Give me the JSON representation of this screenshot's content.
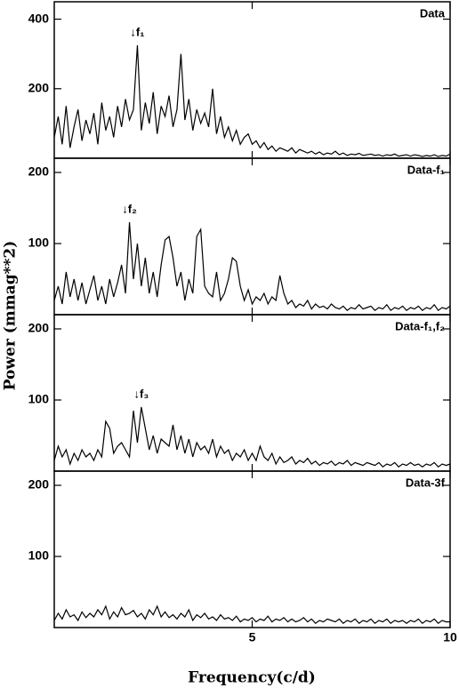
{
  "xlabel": "Frequency(c/d)",
  "ylabel": "Power (mmag**2)",
  "chart_data": [
    {
      "type": "line",
      "label": "Data",
      "xlim": [
        0,
        10
      ],
      "xticks": [
        5,
        10
      ],
      "ylim": [
        0,
        450
      ],
      "yticks": [
        200,
        400
      ],
      "annotation": {
        "text": "↓f₁",
        "x": 2.1,
        "y": 325
      },
      "x": [
        0,
        0.1,
        0.2,
        0.3,
        0.4,
        0.5,
        0.6,
        0.7,
        0.8,
        0.9,
        1,
        1.1,
        1.2,
        1.3,
        1.4,
        1.5,
        1.6,
        1.7,
        1.8,
        1.9,
        2,
        2.1,
        2.2,
        2.3,
        2.4,
        2.5,
        2.6,
        2.7,
        2.8,
        2.9,
        3,
        3.1,
        3.2,
        3.3,
        3.4,
        3.5,
        3.6,
        3.7,
        3.8,
        3.9,
        4,
        4.1,
        4.2,
        4.3,
        4.4,
        4.5,
        4.6,
        4.7,
        4.8,
        4.9,
        5,
        5.1,
        5.2,
        5.3,
        5.4,
        5.5,
        5.6,
        5.7,
        5.8,
        5.9,
        6,
        6.1,
        6.2,
        6.3,
        6.4,
        6.5,
        6.6,
        6.7,
        6.8,
        6.9,
        7,
        7.1,
        7.2,
        7.3,
        7.4,
        7.5,
        7.6,
        7.7,
        7.8,
        7.9,
        8,
        8.1,
        8.2,
        8.3,
        8.4,
        8.5,
        8.6,
        8.7,
        8.8,
        8.9,
        9,
        9.1,
        9.2,
        9.3,
        9.4,
        9.5,
        9.6,
        9.7,
        9.8,
        9.9,
        10
      ],
      "values": [
        60,
        120,
        40,
        150,
        30,
        90,
        140,
        50,
        110,
        70,
        130,
        40,
        160,
        80,
        120,
        60,
        150,
        90,
        170,
        110,
        140,
        325,
        80,
        160,
        100,
        190,
        70,
        150,
        120,
        180,
        90,
        140,
        300,
        110,
        170,
        80,
        140,
        100,
        130,
        90,
        200,
        70,
        120,
        60,
        90,
        50,
        80,
        40,
        60,
        70,
        40,
        50,
        30,
        45,
        25,
        35,
        20,
        30,
        25,
        20,
        30,
        15,
        25,
        20,
        15,
        20,
        12,
        18,
        10,
        15,
        12,
        20,
        10,
        15,
        8,
        12,
        10,
        14,
        8,
        10,
        12,
        8,
        10,
        6,
        10,
        8,
        12,
        6,
        8,
        10,
        6,
        10,
        8,
        5,
        8,
        6,
        10,
        5,
        8,
        6,
        12
      ]
    },
    {
      "type": "line",
      "label": "Data-f₁",
      "xlim": [
        0,
        10
      ],
      "xticks": [
        5,
        10
      ],
      "ylim": [
        0,
        220
      ],
      "yticks": [
        100,
        200
      ],
      "annotation": {
        "text": "↓f₂",
        "x": 1.9,
        "y": 130
      },
      "x": [
        0,
        0.1,
        0.2,
        0.3,
        0.4,
        0.5,
        0.6,
        0.7,
        0.8,
        0.9,
        1,
        1.1,
        1.2,
        1.3,
        1.4,
        1.5,
        1.6,
        1.7,
        1.8,
        1.9,
        2,
        2.1,
        2.2,
        2.3,
        2.4,
        2.5,
        2.6,
        2.7,
        2.8,
        2.9,
        3,
        3.1,
        3.2,
        3.3,
        3.4,
        3.5,
        3.6,
        3.7,
        3.8,
        3.9,
        4,
        4.1,
        4.2,
        4.3,
        4.4,
        4.5,
        4.6,
        4.7,
        4.8,
        4.9,
        5,
        5.1,
        5.2,
        5.3,
        5.4,
        5.5,
        5.6,
        5.7,
        5.8,
        5.9,
        6,
        6.1,
        6.2,
        6.3,
        6.4,
        6.5,
        6.6,
        6.7,
        6.8,
        6.9,
        7,
        7.1,
        7.2,
        7.3,
        7.4,
        7.5,
        7.6,
        7.7,
        7.8,
        7.9,
        8,
        8.1,
        8.2,
        8.3,
        8.4,
        8.5,
        8.6,
        8.7,
        8.8,
        8.9,
        9,
        9.1,
        9.2,
        9.3,
        9.4,
        9.5,
        9.6,
        9.7,
        9.8,
        9.9,
        10
      ],
      "values": [
        20,
        40,
        15,
        60,
        25,
        50,
        20,
        45,
        15,
        35,
        55,
        20,
        40,
        15,
        50,
        25,
        45,
        70,
        30,
        130,
        50,
        100,
        40,
        80,
        30,
        60,
        25,
        70,
        105,
        110,
        80,
        40,
        60,
        20,
        50,
        30,
        110,
        120,
        40,
        30,
        25,
        60,
        20,
        30,
        50,
        80,
        75,
        40,
        20,
        35,
        15,
        25,
        20,
        30,
        15,
        25,
        20,
        55,
        30,
        15,
        20,
        10,
        15,
        12,
        20,
        8,
        15,
        10,
        12,
        8,
        15,
        10,
        8,
        12,
        6,
        10,
        8,
        14,
        8,
        10,
        12,
        6,
        10,
        8,
        14,
        6,
        10,
        8,
        12,
        6,
        10,
        8,
        12,
        6,
        10,
        8,
        14,
        6,
        10,
        8,
        12
      ]
    },
    {
      "type": "line",
      "label": "Data-f₁,f₂",
      "xlim": [
        0,
        10
      ],
      "xticks": [
        5,
        10
      ],
      "ylim": [
        0,
        220
      ],
      "yticks": [
        100,
        200
      ],
      "annotation": {
        "text": "↓f₃",
        "x": 2.2,
        "y": 90
      },
      "x": [
        0,
        0.1,
        0.2,
        0.3,
        0.4,
        0.5,
        0.6,
        0.7,
        0.8,
        0.9,
        1,
        1.1,
        1.2,
        1.3,
        1.4,
        1.5,
        1.6,
        1.7,
        1.8,
        1.9,
        2,
        2.1,
        2.2,
        2.3,
        2.4,
        2.5,
        2.6,
        2.7,
        2.8,
        2.9,
        3,
        3.1,
        3.2,
        3.3,
        3.4,
        3.5,
        3.6,
        3.7,
        3.8,
        3.9,
        4,
        4.1,
        4.2,
        4.3,
        4.4,
        4.5,
        4.6,
        4.7,
        4.8,
        4.9,
        5,
        5.1,
        5.2,
        5.3,
        5.4,
        5.5,
        5.6,
        5.7,
        5.8,
        5.9,
        6,
        6.1,
        6.2,
        6.3,
        6.4,
        6.5,
        6.6,
        6.7,
        6.8,
        6.9,
        7,
        7.1,
        7.2,
        7.3,
        7.4,
        7.5,
        7.6,
        7.7,
        7.8,
        7.9,
        8,
        8.1,
        8.2,
        8.3,
        8.4,
        8.5,
        8.6,
        8.7,
        8.8,
        8.9,
        9,
        9.1,
        9.2,
        9.3,
        9.4,
        9.5,
        9.6,
        9.7,
        9.8,
        9.9,
        10
      ],
      "values": [
        15,
        35,
        20,
        30,
        10,
        25,
        15,
        30,
        20,
        25,
        15,
        30,
        20,
        70,
        60,
        25,
        35,
        40,
        30,
        20,
        85,
        40,
        90,
        60,
        30,
        50,
        25,
        45,
        40,
        35,
        65,
        30,
        50,
        25,
        45,
        20,
        40,
        30,
        35,
        25,
        45,
        20,
        35,
        25,
        30,
        15,
        25,
        20,
        30,
        15,
        25,
        15,
        35,
        20,
        15,
        25,
        10,
        20,
        12,
        15,
        20,
        10,
        15,
        12,
        18,
        10,
        14,
        8,
        12,
        10,
        14,
        8,
        12,
        10,
        15,
        8,
        12,
        10,
        8,
        12,
        10,
        8,
        12,
        6,
        10,
        8,
        12,
        6,
        10,
        8,
        12,
        8,
        10,
        6,
        10,
        8,
        12,
        6,
        10,
        8,
        10
      ]
    },
    {
      "type": "line",
      "label": "Data-3f",
      "xlim": [
        0,
        10
      ],
      "xticks": [
        5,
        10
      ],
      "ylim": [
        0,
        220
      ],
      "yticks": [
        100,
        200
      ],
      "x": [
        0,
        0.1,
        0.2,
        0.3,
        0.4,
        0.5,
        0.6,
        0.7,
        0.8,
        0.9,
        1,
        1.1,
        1.2,
        1.3,
        1.4,
        1.5,
        1.6,
        1.7,
        1.8,
        1.9,
        2,
        2.1,
        2.2,
        2.3,
        2.4,
        2.5,
        2.6,
        2.7,
        2.8,
        2.9,
        3,
        3.1,
        3.2,
        3.3,
        3.4,
        3.5,
        3.6,
        3.7,
        3.8,
        3.9,
        4,
        4.1,
        4.2,
        4.3,
        4.4,
        4.5,
        4.6,
        4.7,
        4.8,
        4.9,
        5,
        5.1,
        5.2,
        5.3,
        5.4,
        5.5,
        5.6,
        5.7,
        5.8,
        5.9,
        6,
        6.1,
        6.2,
        6.3,
        6.4,
        6.5,
        6.6,
        6.7,
        6.8,
        6.9,
        7,
        7.1,
        7.2,
        7.3,
        7.4,
        7.5,
        7.6,
        7.7,
        7.8,
        7.9,
        8,
        8.1,
        8.2,
        8.3,
        8.4,
        8.5,
        8.6,
        8.7,
        8.8,
        8.9,
        9,
        9.1,
        9.2,
        9.3,
        9.4,
        9.5,
        9.6,
        9.7,
        9.8,
        9.9,
        10
      ],
      "values": [
        10,
        20,
        12,
        25,
        15,
        18,
        10,
        22,
        14,
        20,
        15,
        25,
        18,
        30,
        12,
        22,
        15,
        28,
        18,
        20,
        24,
        15,
        20,
        12,
        25,
        18,
        30,
        15,
        22,
        14,
        18,
        12,
        20,
        15,
        25,
        10,
        18,
        14,
        20,
        12,
        15,
        10,
        18,
        12,
        14,
        10,
        16,
        8,
        12,
        10,
        14,
        8,
        12,
        10,
        16,
        8,
        12,
        10,
        14,
        8,
        12,
        8,
        10,
        14,
        8,
        12,
        6,
        10,
        8,
        12,
        10,
        8,
        12,
        6,
        10,
        8,
        12,
        6,
        10,
        8,
        12,
        6,
        10,
        8,
        12,
        6,
        10,
        8,
        10,
        6,
        10,
        8,
        12,
        6,
        10,
        8,
        12,
        6,
        10,
        8,
        8
      ]
    }
  ]
}
